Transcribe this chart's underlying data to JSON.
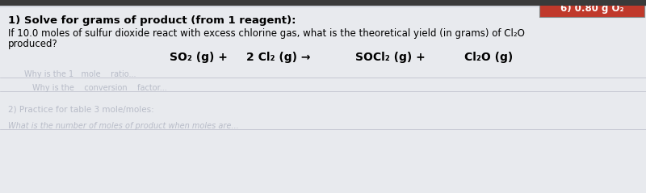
{
  "bg_color": "#d0d4dc",
  "paper_color": "#e8eaee",
  "box_color": "#c0392b",
  "box_text": "6) 0.80 g O₂",
  "box_text_color": "#ffffff",
  "heading": "1) Solve for grams of product (from 1 reagent):",
  "question_line1": "If 10.0 moles of sulfur dioxide react with excess chlorine gas, what is the theoretical yield (in grams) of Cl₂O",
  "question_line2": "produced?",
  "eq_part1": "SO₂ (g) +",
  "eq_part2": "2 Cl₂ (g) →",
  "eq_part3": "SOCl₂ (g) +",
  "eq_part4": "Cl₂O (g)",
  "faded_color": "#b8bcc8",
  "faded_line1": "Why is the 1   mole    ratio...",
  "faded_line2": "Why is the    conversion    factor...",
  "faded_heading": "2) Practice for table 3 mole/moles:",
  "faded_question": "What is the number of moles of product when moles are..."
}
